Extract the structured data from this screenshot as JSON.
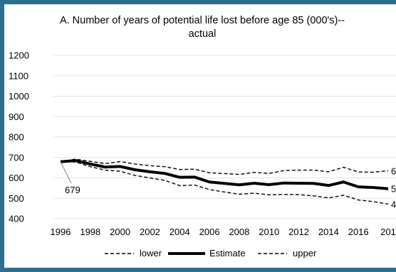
{
  "chart_data": {
    "type": "line",
    "title": "A. Number of years of potential life lost before age 85 (000's)--",
    "title_line2": "actual",
    "ylim": [
      400,
      1200
    ],
    "yticks": [
      400,
      500,
      600,
      700,
      800,
      900,
      1000,
      1100,
      1200
    ],
    "xlim": [
      1996,
      2018
    ],
    "xtick_labels": [
      "1996",
      "1998",
      "2000",
      "2002",
      "2004",
      "2006",
      "2008",
      "2010",
      "2012",
      "2014",
      "2016",
      "201"
    ],
    "grid": true,
    "legend_position": "bottom",
    "x": [
      1996,
      1997,
      1998,
      1999,
      2000,
      2001,
      2002,
      2003,
      2004,
      2005,
      2006,
      2007,
      2008,
      2009,
      2010,
      2011,
      2012,
      2013,
      2014,
      2015,
      2016,
      2017,
      2018
    ],
    "series": [
      {
        "name": "lower",
        "style": "dashed",
        "color": "#000000",
        "values": [
          679,
          678,
          655,
          638,
          633,
          612,
          600,
          588,
          562,
          565,
          543,
          531,
          520,
          525,
          517,
          519,
          518,
          512,
          502,
          515,
          492,
          484,
          472
        ]
      },
      {
        "name": "Estimate",
        "style": "solid-thick",
        "color": "#000000",
        "values": [
          679,
          685,
          668,
          653,
          656,
          640,
          630,
          622,
          603,
          604,
          580,
          573,
          566,
          574,
          567,
          575,
          574,
          573,
          563,
          580,
          556,
          553,
          547
        ]
      },
      {
        "name": "upper",
        "style": "dashed",
        "color": "#000000",
        "values": [
          679,
          692,
          681,
          670,
          680,
          668,
          660,
          655,
          641,
          643,
          625,
          621,
          617,
          627,
          622,
          636,
          638,
          638,
          630,
          652,
          629,
          628,
          635
        ]
      }
    ],
    "annotations": [
      {
        "text": "679",
        "x": 1996,
        "y": 679
      },
      {
        "text": "6",
        "x": 2018,
        "y": 635
      },
      {
        "text": "5",
        "x": 2018,
        "y": 547
      },
      {
        "text": "4",
        "x": 2018,
        "y": 472
      }
    ]
  }
}
